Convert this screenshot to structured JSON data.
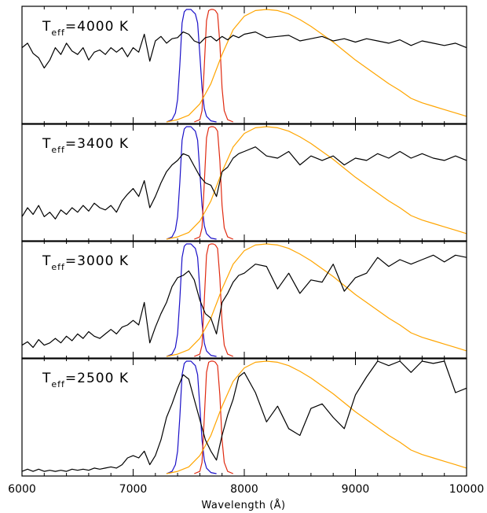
{
  "colors": {
    "spectrum": "#000000",
    "blue_filter": "#1a10c8",
    "red_filter": "#e02a10",
    "blackbody": "#ffa500",
    "axis": "#000000"
  },
  "chart_data": {
    "type": "line",
    "xlabel": "Wavelength (Å)",
    "xlim": [
      6000,
      10000
    ],
    "x_ticks": [
      6000,
      7000,
      8000,
      9000,
      10000
    ],
    "x_tick_labels": [
      "6000",
      "7000",
      "8000",
      "9000",
      "10000"
    ],
    "ylim": [
      0,
      1
    ],
    "y_ticks_shown": false,
    "grid": false,
    "panels": [
      {
        "label_main": "T",
        "label_sub": "eff",
        "label_rest": "=4000  K",
        "series": [
          {
            "role": "stellar-spectrum",
            "x": [
              6000,
              6050,
              6100,
              6150,
              6200,
              6250,
              6300,
              6350,
              6400,
              6450,
              6500,
              6550,
              6600,
              6650,
              6700,
              6750,
              6800,
              6850,
              6900,
              6950,
              7000,
              7050,
              7100,
              7150,
              7200,
              7250,
              7300,
              7350,
              7400,
              7450,
              7500,
              7550,
              7600,
              7650,
              7700,
              7750,
              7800,
              7850,
              7900,
              7950,
              8000,
              8100,
              8200,
              8300,
              8400,
              8500,
              8600,
              8700,
              8800,
              8900,
              9000,
              9100,
              9200,
              9300,
              9400,
              9500,
              9600,
              9700,
              9800,
              9900,
              10000
            ],
            "y": [
              0.66,
              0.7,
              0.61,
              0.57,
              0.48,
              0.55,
              0.66,
              0.6,
              0.7,
              0.63,
              0.6,
              0.66,
              0.55,
              0.62,
              0.64,
              0.6,
              0.66,
              0.62,
              0.66,
              0.58,
              0.66,
              0.62,
              0.78,
              0.54,
              0.72,
              0.76,
              0.7,
              0.74,
              0.75,
              0.8,
              0.78,
              0.72,
              0.7,
              0.75,
              0.76,
              0.72,
              0.76,
              0.73,
              0.77,
              0.75,
              0.78,
              0.8,
              0.75,
              0.76,
              0.77,
              0.72,
              0.74,
              0.76,
              0.72,
              0.74,
              0.71,
              0.74,
              0.72,
              0.7,
              0.73,
              0.68,
              0.72,
              0.7,
              0.68,
              0.7,
              0.66
            ]
          }
        ]
      },
      {
        "label_main": "T",
        "label_sub": "eff",
        "label_rest": "=3400  K",
        "series": [
          {
            "role": "stellar-spectrum",
            "x": [
              6000,
              6050,
              6100,
              6150,
              6200,
              6250,
              6300,
              6350,
              6400,
              6450,
              6500,
              6550,
              6600,
              6650,
              6700,
              6750,
              6800,
              6850,
              6900,
              6950,
              7000,
              7050,
              7100,
              7150,
              7200,
              7250,
              7300,
              7350,
              7400,
              7450,
              7500,
              7550,
              7600,
              7650,
              7700,
              7750,
              7800,
              7850,
              7900,
              7950,
              8000,
              8100,
              8200,
              8300,
              8400,
              8500,
              8600,
              8700,
              8800,
              8900,
              9000,
              9100,
              9200,
              9300,
              9400,
              9500,
              9600,
              9700,
              9800,
              9900,
              10000
            ],
            "y": [
              0.2,
              0.28,
              0.22,
              0.3,
              0.2,
              0.24,
              0.18,
              0.26,
              0.22,
              0.28,
              0.24,
              0.3,
              0.25,
              0.32,
              0.28,
              0.26,
              0.3,
              0.24,
              0.34,
              0.4,
              0.45,
              0.38,
              0.52,
              0.28,
              0.38,
              0.5,
              0.6,
              0.66,
              0.7,
              0.76,
              0.74,
              0.65,
              0.56,
              0.5,
              0.48,
              0.38,
              0.6,
              0.64,
              0.72,
              0.76,
              0.78,
              0.82,
              0.74,
              0.72,
              0.78,
              0.66,
              0.74,
              0.7,
              0.74,
              0.66,
              0.72,
              0.7,
              0.76,
              0.72,
              0.78,
              0.72,
              0.76,
              0.72,
              0.7,
              0.74,
              0.7
            ]
          }
        ]
      },
      {
        "label_main": "T",
        "label_sub": "eff",
        "label_rest": "=3000  K",
        "series": [
          {
            "role": "stellar-spectrum",
            "x": [
              6000,
              6050,
              6100,
              6150,
              6200,
              6250,
              6300,
              6350,
              6400,
              6450,
              6500,
              6550,
              6600,
              6650,
              6700,
              6750,
              6800,
              6850,
              6900,
              6950,
              7000,
              7050,
              7100,
              7150,
              7200,
              7250,
              7300,
              7350,
              7400,
              7450,
              7500,
              7550,
              7600,
              7650,
              7700,
              7750,
              7800,
              7850,
              7900,
              7950,
              8000,
              8100,
              8200,
              8300,
              8400,
              8500,
              8600,
              8700,
              8800,
              8900,
              9000,
              9100,
              9200,
              9300,
              9400,
              9500,
              9600,
              9700,
              9800,
              9900,
              10000
            ],
            "y": [
              0.1,
              0.13,
              0.08,
              0.15,
              0.1,
              0.12,
              0.16,
              0.12,
              0.18,
              0.14,
              0.2,
              0.16,
              0.22,
              0.18,
              0.16,
              0.2,
              0.24,
              0.2,
              0.26,
              0.28,
              0.32,
              0.28,
              0.48,
              0.12,
              0.26,
              0.38,
              0.48,
              0.62,
              0.7,
              0.72,
              0.76,
              0.68,
              0.5,
              0.38,
              0.34,
              0.2,
              0.48,
              0.56,
              0.66,
              0.72,
              0.74,
              0.82,
              0.8,
              0.6,
              0.74,
              0.56,
              0.68,
              0.66,
              0.82,
              0.58,
              0.7,
              0.74,
              0.88,
              0.8,
              0.86,
              0.82,
              0.86,
              0.9,
              0.84,
              0.9,
              0.88
            ]
          }
        ]
      },
      {
        "label_main": "T",
        "label_sub": "eff",
        "label_rest": "=2500  K",
        "series": [
          {
            "role": "stellar-spectrum",
            "x": [
              6000,
              6050,
              6100,
              6150,
              6200,
              6250,
              6300,
              6350,
              6400,
              6450,
              6500,
              6550,
              6600,
              6650,
              6700,
              6750,
              6800,
              6850,
              6900,
              6950,
              7000,
              7050,
              7100,
              7150,
              7200,
              7250,
              7300,
              7350,
              7400,
              7450,
              7500,
              7550,
              7600,
              7650,
              7700,
              7750,
              7800,
              7850,
              7900,
              7950,
              8000,
              8100,
              8200,
              8300,
              8400,
              8500,
              8600,
              8700,
              8800,
              8900,
              9000,
              9100,
              9200,
              9300,
              9400,
              9500,
              9600,
              9700,
              9800,
              9900,
              10000
            ],
            "y": [
              0.02,
              0.04,
              0.02,
              0.04,
              0.02,
              0.03,
              0.02,
              0.03,
              0.02,
              0.04,
              0.03,
              0.04,
              0.03,
              0.05,
              0.04,
              0.05,
              0.06,
              0.05,
              0.08,
              0.14,
              0.16,
              0.14,
              0.2,
              0.08,
              0.16,
              0.3,
              0.5,
              0.62,
              0.76,
              0.88,
              0.84,
              0.66,
              0.48,
              0.3,
              0.2,
              0.12,
              0.34,
              0.52,
              0.66,
              0.86,
              0.9,
              0.72,
              0.46,
              0.6,
              0.4,
              0.34,
              0.58,
              0.62,
              0.5,
              0.4,
              0.7,
              0.86,
              1.0,
              0.96,
              1.0,
              0.9,
              1.0,
              0.98,
              1.0,
              0.72,
              0.76
            ]
          }
        ]
      }
    ],
    "overlay_curves": [
      {
        "role": "blue-filter-transmission",
        "x": [
          7300,
          7350,
          7380,
          7400,
          7420,
          7440,
          7460,
          7480,
          7500,
          7520,
          7540,
          7560,
          7580,
          7600,
          7620,
          7640,
          7660,
          7700,
          7750
        ],
        "y": [
          0.0,
          0.02,
          0.08,
          0.2,
          0.5,
          0.88,
          0.98,
          1.0,
          1.0,
          1.0,
          0.98,
          0.96,
          0.88,
          0.6,
          0.3,
          0.12,
          0.05,
          0.01,
          0.0
        ]
      },
      {
        "role": "red-filter-transmission",
        "x": [
          7550,
          7600,
          7620,
          7640,
          7660,
          7680,
          7700,
          7720,
          7740,
          7760,
          7780,
          7800,
          7820,
          7850,
          7900
        ],
        "y": [
          0.0,
          0.02,
          0.1,
          0.5,
          0.9,
          0.99,
          1.0,
          1.0,
          0.99,
          0.96,
          0.7,
          0.3,
          0.1,
          0.02,
          0.0
        ]
      },
      {
        "role": "blackbody-curve",
        "x": [
          7300,
          7400,
          7500,
          7600,
          7700,
          7800,
          7900,
          8000,
          8100,
          8200,
          8300,
          8400,
          8500,
          8600,
          8700,
          8800,
          8900,
          9000,
          9100,
          9200,
          9300,
          9400,
          9500,
          9600,
          9700,
          9800,
          9900,
          10000
        ],
        "y": [
          0.0,
          0.02,
          0.06,
          0.16,
          0.34,
          0.6,
          0.82,
          0.94,
          0.99,
          1.0,
          0.99,
          0.96,
          0.91,
          0.85,
          0.78,
          0.71,
          0.63,
          0.55,
          0.48,
          0.41,
          0.34,
          0.28,
          0.21,
          0.17,
          0.14,
          0.11,
          0.08,
          0.05
        ]
      }
    ]
  }
}
